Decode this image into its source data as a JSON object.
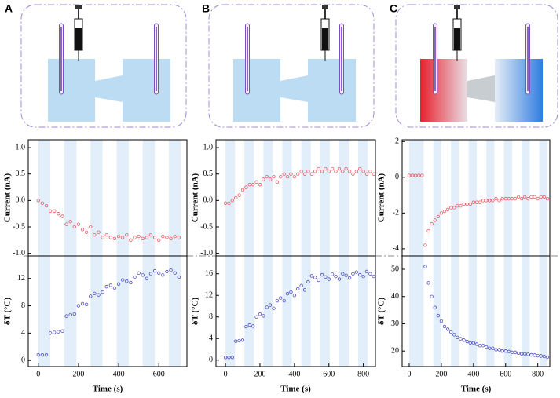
{
  "panels": [
    "A",
    "B",
    "C"
  ],
  "chart_data": [
    {
      "type": "scatter",
      "ylabel": "Current (nA)",
      "color": "#e8474f",
      "xlim": [
        -50,
        740
      ],
      "ylim": [
        -1.05,
        1.15
      ],
      "yticks": [
        {
          "value": 1.0,
          "label": "1.0"
        },
        0.5,
        {
          "value": 0,
          "label": "0.0"
        },
        -0.5,
        {
          "value": -1.0,
          "label": "-1.0"
        }
      ],
      "bands": [
        [
          0,
          60
        ],
        [
          130,
          190
        ],
        [
          260,
          320
        ],
        [
          390,
          450
        ],
        [
          520,
          580
        ],
        [
          650,
          710
        ]
      ],
      "x": [
        0,
        20,
        40,
        60,
        80,
        100,
        120,
        140,
        160,
        180,
        200,
        220,
        240,
        260,
        280,
        300,
        320,
        340,
        360,
        380,
        400,
        420,
        440,
        460,
        480,
        500,
        520,
        540,
        560,
        580,
        600,
        620,
        640,
        660,
        680,
        700
      ],
      "values": [
        0.0,
        -0.05,
        -0.1,
        -0.2,
        -0.2,
        -0.25,
        -0.3,
        -0.45,
        -0.4,
        -0.5,
        -0.45,
        -0.55,
        -0.6,
        -0.5,
        -0.65,
        -0.6,
        -0.7,
        -0.65,
        -0.7,
        -0.72,
        -0.68,
        -0.7,
        -0.65,
        -0.75,
        -0.7,
        -0.68,
        -0.72,
        -0.7,
        -0.65,
        -0.7,
        -0.75,
        -0.68,
        -0.7,
        -0.72,
        -0.68,
        -0.7
      ]
    },
    {
      "type": "scatter",
      "ylabel": "δT (°C)",
      "xlabel": "Time (s)",
      "color": "#3a3ab8",
      "xlim": [
        -50,
        740
      ],
      "ylim": [
        -0.9,
        15.3
      ],
      "xticks": [
        0,
        200,
        400,
        600
      ],
      "yticks": [
        0,
        4,
        8,
        12
      ],
      "bands": [
        [
          0,
          60
        ],
        [
          130,
          190
        ],
        [
          260,
          320
        ],
        [
          390,
          450
        ],
        [
          520,
          580
        ],
        [
          650,
          710
        ]
      ],
      "x": [
        0,
        20,
        40,
        60,
        80,
        100,
        120,
        140,
        160,
        180,
        200,
        220,
        240,
        260,
        280,
        300,
        320,
        340,
        360,
        380,
        400,
        420,
        440,
        460,
        480,
        500,
        520,
        540,
        560,
        580,
        600,
        620,
        640,
        660,
        680,
        700
      ],
      "values": [
        0.8,
        0.8,
        0.8,
        4.0,
        4.1,
        4.2,
        4.3,
        6.5,
        6.7,
        6.8,
        8.0,
        8.3,
        8.2,
        9.4,
        9.8,
        9.6,
        10.0,
        10.8,
        11.0,
        10.6,
        11.2,
        11.8,
        11.6,
        11.4,
        12.2,
        12.8,
        12.5,
        12.0,
        12.7,
        13.1,
        12.8,
        12.5,
        13.0,
        13.2,
        12.8,
        12.2
      ]
    },
    {
      "type": "scatter",
      "ylabel": "Current (nA)",
      "color": "#e8474f",
      "xlim": [
        -55,
        870
      ],
      "ylim": [
        -1.05,
        1.15
      ],
      "yticks": [
        {
          "value": 1.0,
          "label": "1.0"
        },
        0.5,
        {
          "value": 0,
          "label": "0.0"
        },
        -0.5,
        {
          "value": -1.0,
          "label": "-1.0"
        }
      ],
      "bands": [
        [
          0,
          55
        ],
        [
          110,
          165
        ],
        [
          220,
          275
        ],
        [
          330,
          385
        ],
        [
          440,
          495
        ],
        [
          550,
          605
        ],
        [
          660,
          715
        ],
        [
          770,
          825
        ]
      ],
      "x": [
        0,
        20,
        40,
        60,
        80,
        100,
        120,
        140,
        160,
        180,
        200,
        220,
        240,
        260,
        280,
        300,
        320,
        340,
        360,
        380,
        400,
        420,
        440,
        460,
        480,
        500,
        520,
        540,
        560,
        580,
        600,
        620,
        640,
        660,
        680,
        700,
        720,
        740,
        760,
        780,
        800,
        820,
        840,
        860
      ],
      "values": [
        -0.05,
        -0.05,
        0.0,
        0.05,
        0.1,
        0.2,
        0.25,
        0.3,
        0.3,
        0.35,
        0.3,
        0.4,
        0.45,
        0.4,
        0.45,
        0.35,
        0.45,
        0.5,
        0.45,
        0.5,
        0.45,
        0.5,
        0.55,
        0.5,
        0.55,
        0.5,
        0.55,
        0.6,
        0.55,
        0.6,
        0.55,
        0.6,
        0.55,
        0.6,
        0.55,
        0.6,
        0.55,
        0.5,
        0.55,
        0.6,
        0.55,
        0.5,
        0.55,
        0.5
      ]
    },
    {
      "type": "scatter",
      "ylabel": "δT (°C)",
      "xlabel": "Time (s)",
      "color": "#3a3ab8",
      "xlim": [
        -55,
        870
      ],
      "ylim": [
        -1.2,
        19.3
      ],
      "xticks": [
        0,
        200,
        400,
        600,
        800
      ],
      "yticks": [
        0,
        4,
        8,
        12,
        16
      ],
      "bands": [
        [
          0,
          55
        ],
        [
          110,
          165
        ],
        [
          220,
          275
        ],
        [
          330,
          385
        ],
        [
          440,
          495
        ],
        [
          550,
          605
        ],
        [
          660,
          715
        ],
        [
          770,
          825
        ]
      ],
      "x": [
        0,
        20,
        40,
        60,
        80,
        100,
        120,
        140,
        160,
        180,
        200,
        220,
        240,
        260,
        280,
        300,
        320,
        340,
        360,
        380,
        400,
        420,
        440,
        460,
        480,
        500,
        520,
        540,
        560,
        580,
        600,
        620,
        640,
        660,
        680,
        700,
        720,
        740,
        760,
        780,
        800,
        820,
        840,
        860
      ],
      "values": [
        0.5,
        0.5,
        0.5,
        3.5,
        3.6,
        3.7,
        6.2,
        6.5,
        6.3,
        8.0,
        8.5,
        8.2,
        9.8,
        10.2,
        9.6,
        11.0,
        11.5,
        11.0,
        12.3,
        12.6,
        12.0,
        13.2,
        13.8,
        13.0,
        14.5,
        15.6,
        15.3,
        14.8,
        15.8,
        15.4,
        15.0,
        15.9,
        15.5,
        15.0,
        16.0,
        15.7,
        15.2,
        16.0,
        16.3,
        15.8,
        15.5,
        16.4,
        16.0,
        15.5
      ]
    },
    {
      "type": "scatter",
      "ylabel": "Current (nA)",
      "color": "#e8474f",
      "xlim": [
        -44,
        875
      ],
      "ylim": [
        -4.4,
        2.1
      ],
      "yticks": [
        2,
        0,
        -2,
        -4
      ],
      "bands": [
        [
          0,
          90
        ],
        [
          150,
          200
        ],
        [
          260,
          310
        ],
        [
          370,
          420
        ],
        [
          480,
          530
        ],
        [
          590,
          640
        ],
        [
          700,
          750
        ],
        [
          810,
          860
        ]
      ],
      "x": [
        0,
        20,
        40,
        60,
        80,
        100,
        120,
        140,
        160,
        180,
        200,
        220,
        240,
        260,
        280,
        300,
        320,
        340,
        360,
        380,
        400,
        420,
        440,
        460,
        480,
        500,
        520,
        540,
        560,
        580,
        600,
        620,
        640,
        660,
        680,
        700,
        720,
        740,
        760,
        780,
        800,
        820,
        840,
        860
      ],
      "values": [
        0.1,
        0.1,
        0.1,
        0.1,
        0.1,
        -3.8,
        -3.0,
        -2.6,
        -2.4,
        -2.2,
        -2.0,
        -1.9,
        -1.8,
        -1.7,
        -1.7,
        -1.6,
        -1.6,
        -1.5,
        -1.5,
        -1.5,
        -1.4,
        -1.4,
        -1.4,
        -1.3,
        -1.3,
        -1.3,
        -1.3,
        -1.2,
        -1.3,
        -1.2,
        -1.2,
        -1.2,
        -1.2,
        -1.2,
        -1.1,
        -1.2,
        -1.1,
        -1.2,
        -1.1,
        -1.1,
        -1.2,
        -1.1,
        -1.1,
        -1.2
      ]
    },
    {
      "type": "scatter",
      "ylabel": "δT (°C)",
      "xlabel": "Time (s)",
      "color": "#3a3ab8",
      "xlim": [
        -44,
        875
      ],
      "ylim": [
        14.3,
        54.9
      ],
      "xticks": [
        0,
        200,
        400,
        600,
        800
      ],
      "yticks": [
        20,
        30,
        40,
        50
      ],
      "bands": [
        [
          0,
          90
        ],
        [
          150,
          200
        ],
        [
          260,
          310
        ],
        [
          370,
          420
        ],
        [
          480,
          530
        ],
        [
          590,
          640
        ],
        [
          700,
          750
        ],
        [
          810,
          860
        ]
      ],
      "x": [
        0,
        20,
        40,
        60,
        80,
        100,
        120,
        140,
        160,
        180,
        200,
        220,
        240,
        260,
        280,
        300,
        320,
        340,
        360,
        380,
        400,
        420,
        440,
        460,
        480,
        500,
        520,
        540,
        560,
        580,
        600,
        620,
        640,
        660,
        680,
        700,
        720,
        740,
        760,
        780,
        800,
        820,
        840,
        860
      ],
      "values": [
        null,
        null,
        null,
        null,
        null,
        51,
        45,
        40,
        36,
        33,
        31,
        29,
        28,
        27,
        26,
        25,
        24.5,
        24,
        23.5,
        23,
        23,
        22.5,
        22,
        22,
        21.5,
        21,
        21,
        20.5,
        20.5,
        20,
        20,
        19.8,
        19.5,
        19.5,
        19.2,
        19,
        19,
        18.8,
        18.6,
        18.5,
        18.3,
        18.2,
        18,
        17.8
      ]
    }
  ]
}
